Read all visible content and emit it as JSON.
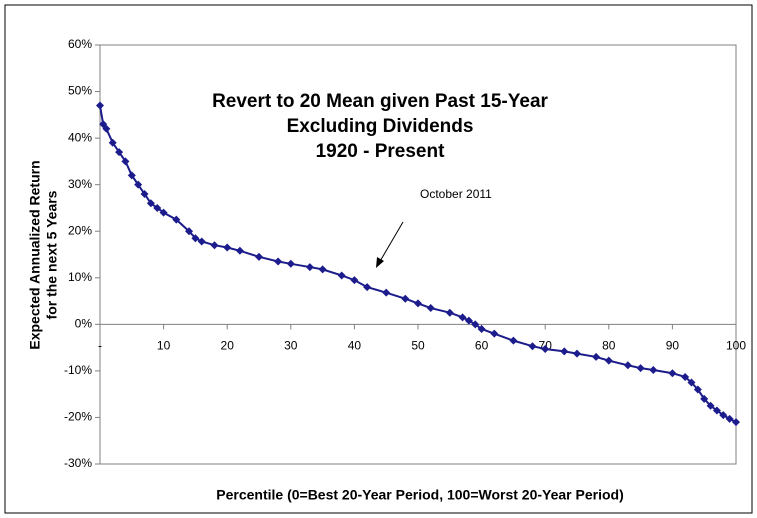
{
  "chart_data": {
    "type": "scatter",
    "title": [
      "Revert to 20 Mean given Past 15-Year",
      "Excluding Dividends",
      "1920 - Present"
    ],
    "x_label": "Percentile (0=Best 20-Year Period, 100=Worst 20-Year Period)",
    "y_label": [
      "Expected Annualized Return",
      "for the next 5 Years"
    ],
    "annotation": "October 2011",
    "xlim": [
      0,
      100
    ],
    "xticks": [
      {
        "value": 0,
        "label": "-"
      },
      10,
      20,
      30,
      40,
      50,
      60,
      70,
      80,
      90,
      100
    ],
    "ylim": [
      -30,
      60
    ],
    "yticks": [
      {
        "value": -30,
        "label": "-30%"
      },
      {
        "value": -20,
        "label": "-20%"
      },
      {
        "value": -10,
        "label": "-10%"
      },
      {
        "value": 0,
        "label": "0%"
      },
      {
        "value": 10,
        "label": "10%"
      },
      {
        "value": 20,
        "label": "20%"
      },
      {
        "value": 30,
        "label": "30%"
      },
      {
        "value": 40,
        "label": "40%"
      },
      {
        "value": 50,
        "label": "50%"
      },
      {
        "value": 60,
        "label": "60%"
      }
    ],
    "grid": false,
    "series": [
      {
        "color": "#1c1c8c",
        "x": [
          0,
          0.5,
          1,
          2,
          3,
          4,
          5,
          6,
          7,
          8,
          9,
          10,
          12,
          14,
          15,
          16,
          18,
          20,
          22,
          25,
          28,
          30,
          33,
          35,
          38,
          40,
          42,
          45,
          48,
          50,
          52,
          55,
          57,
          58,
          59,
          60,
          62,
          65,
          68,
          70,
          73,
          75,
          78,
          80,
          83,
          85,
          87,
          90,
          92,
          93,
          94,
          95,
          96,
          97,
          98,
          99,
          100
        ],
        "values": [
          47,
          43,
          42,
          39,
          37,
          35,
          32,
          30,
          28,
          26,
          25,
          24,
          22.5,
          20,
          18.5,
          17.8,
          17,
          16.5,
          15.8,
          14.5,
          13.5,
          13,
          12.3,
          11.8,
          10.5,
          9.5,
          8,
          6.8,
          5.5,
          4.5,
          3.5,
          2.5,
          1.5,
          0.8,
          0,
          -1,
          -2,
          -3.5,
          -4.7,
          -5.3,
          -5.8,
          -6.3,
          -7,
          -7.8,
          -8.8,
          -9.4,
          -9.8,
          -10.5,
          -11.3,
          -12.5,
          -14,
          -16,
          -17.5,
          -18.5,
          -19.5,
          -20.3,
          -21
        ]
      }
    ]
  }
}
